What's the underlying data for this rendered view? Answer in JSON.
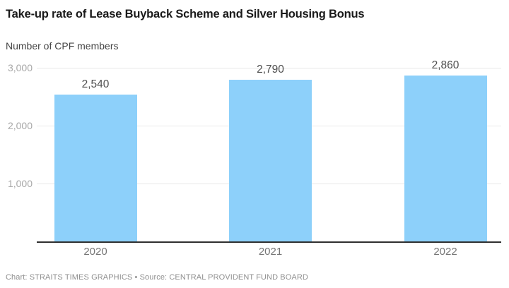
{
  "header": {
    "title": "Take-up rate of Lease Buyback Scheme and Silver Housing Bonus",
    "subtitle": "Number of CPF members"
  },
  "chart_data": {
    "type": "bar",
    "categories": [
      "2020",
      "2021",
      "2022"
    ],
    "values": [
      2540,
      2790,
      2860
    ],
    "value_labels": [
      "2,540",
      "2,790",
      "2,860"
    ],
    "title": "Take-up rate of Lease Buyback Scheme and Silver Housing Bonus",
    "ylabel": "Number of CPF members",
    "xlabel": "",
    "ylim": [
      0,
      3000
    ],
    "y_ticks": [
      {
        "value": 1000,
        "label": "1,000"
      },
      {
        "value": 2000,
        "label": "2,000"
      },
      {
        "value": 3000,
        "label": "3,000"
      }
    ],
    "grid": "horizontal-only",
    "legend": "none",
    "bar_color": "#8DD0FA"
  },
  "footer": {
    "credit": "Chart: STRAITS TIMES GRAPHICS • Source: CENTRAL PROVIDENT FUND BOARD"
  },
  "colors": {
    "background": "#ffffff",
    "title": "#1a1a1a",
    "subtitle": "#454545",
    "tick_label": "#a8a8a8",
    "gridline": "#e8e8e8",
    "axis_line": "#2f2f2f",
    "value_label": "#4f4f4f",
    "category_label": "#757575",
    "footer": "#8f8f8f",
    "bar": "#8DD0FA"
  }
}
